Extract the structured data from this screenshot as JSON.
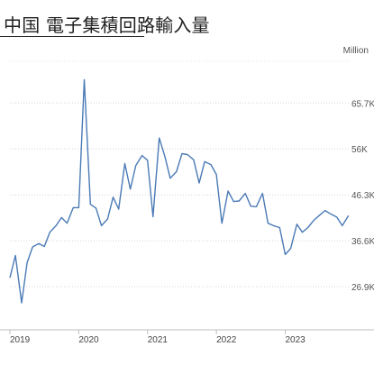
{
  "title": "中国 電子集積回路輸入量",
  "chart_data": {
    "type": "line",
    "unit_label": "Million",
    "y_tick_labels": [
      "65.7K",
      "56K",
      "46.3K",
      "36.6K",
      "26.9K"
    ],
    "y_tick_values": [
      65700,
      56000,
      46300,
      36600,
      26900
    ],
    "ylim": [
      17800,
      74500
    ],
    "x_tick_labels": [
      "2019",
      "2020",
      "2021",
      "2022",
      "2023"
    ],
    "x_tick_values": [
      2019.0,
      2020.0,
      2021.0,
      2022.0,
      2023.0
    ],
    "xlim": [
      2019.0,
      2023.95
    ],
    "grid": "horizontal",
    "color": "#4a7ab5",
    "series": [
      {
        "x": [
          2019.0,
          2019.08,
          2019.17,
          2019.25,
          2019.33,
          2019.42,
          2019.5,
          2019.58,
          2019.67,
          2019.75,
          2019.83,
          2019.92,
          2020.0,
          2020.08,
          2020.17,
          2020.25,
          2020.33,
          2020.42,
          2020.5,
          2020.58,
          2020.67,
          2020.75,
          2020.83,
          2020.92,
          2021.0,
          2021.08,
          2021.17,
          2021.25,
          2021.33,
          2021.42,
          2021.5,
          2021.58,
          2021.67,
          2021.75,
          2021.83,
          2021.92,
          2022.0,
          2022.08,
          2022.17,
          2022.25,
          2022.33,
          2022.42,
          2022.5,
          2022.58,
          2022.67,
          2022.75,
          2022.83,
          2022.92,
          2023.0,
          2023.08,
          2023.17,
          2023.25,
          2023.33,
          2023.42,
          2023.5,
          2023.58,
          2023.67,
          2023.75,
          2023.83,
          2023.92
        ],
        "y": [
          28800,
          33500,
          23500,
          32000,
          35300,
          36000,
          35400,
          38400,
          39800,
          41500,
          40300,
          43600,
          43600,
          70600,
          44300,
          43500,
          39800,
          41200,
          45800,
          43300,
          52900,
          47500,
          52500,
          54600,
          53600,
          41700,
          58300,
          54500,
          49800,
          51200,
          55000,
          54800,
          53700,
          48800,
          53300,
          52700,
          50600,
          40300,
          47100,
          44900,
          45000,
          46600,
          43900,
          43800,
          46600,
          40300,
          39800,
          39400,
          33700,
          35000,
          40100,
          38400,
          39400,
          41000,
          42000,
          43000,
          42200,
          41600,
          39800,
          41900
        ]
      }
    ]
  }
}
